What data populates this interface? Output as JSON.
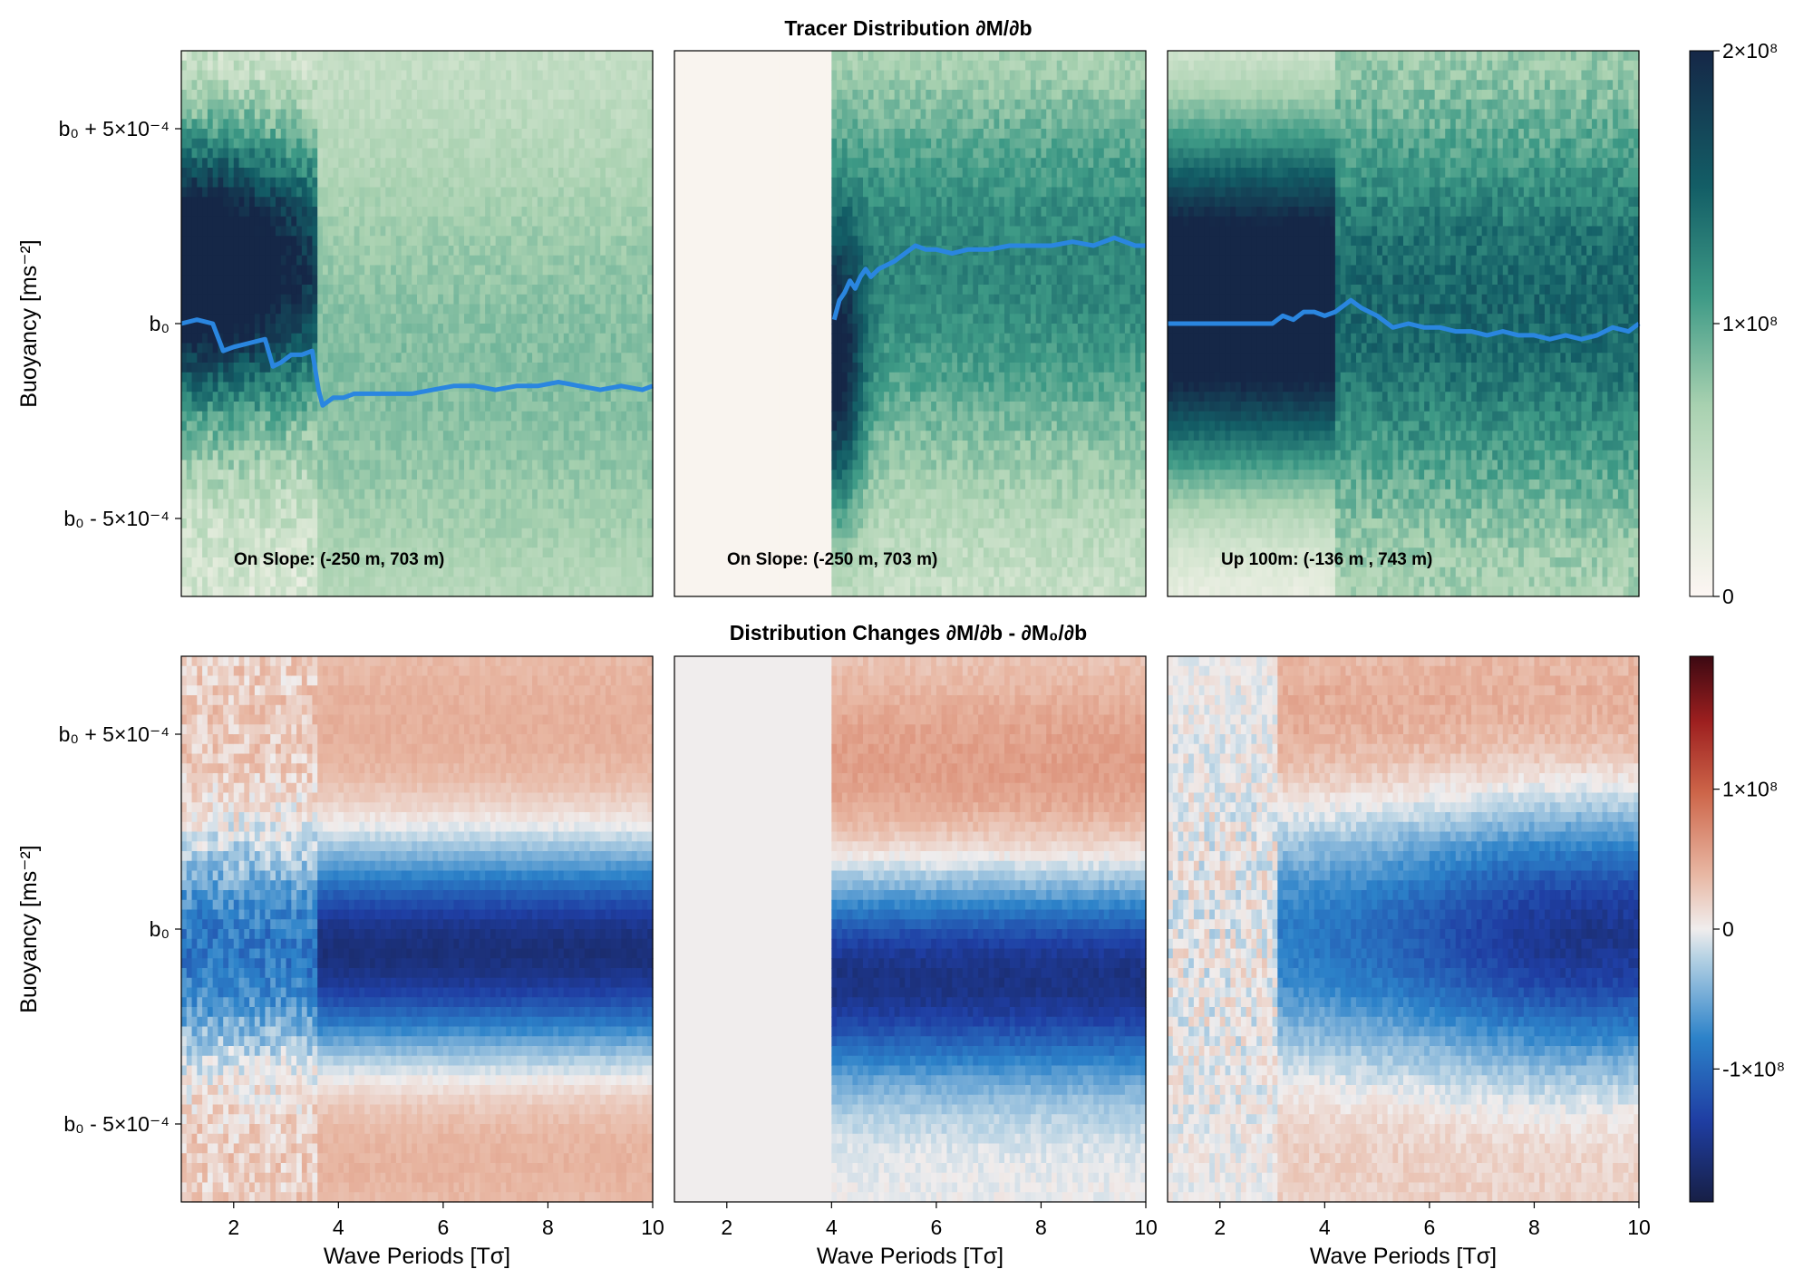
{
  "chart_data": [
    {
      "type": "heatmap",
      "title": "Tracer Distribution ∂M/∂b",
      "xlabel": "",
      "ylabel": "Buoyancy [ms⁻²]",
      "xlim": [
        1,
        10
      ],
      "ylim": [
        -0.0007,
        0.0007
      ],
      "yticks": [
        -0.0005,
        0,
        0.0005
      ],
      "ytick_labels": [
        "b₀ - 5×10⁻⁴",
        "b₀",
        "b₀ + 5×10⁻⁴"
      ],
      "colormap": "tempo",
      "colorbar": {
        "range": [
          0,
          200000000
        ],
        "ticks": [
          0,
          100000000,
          200000000
        ],
        "tick_labels": [
          "0",
          "1×10⁸",
          "2×10⁸"
        ]
      },
      "panels": [
        {
          "annotation": "On Slope: (-250 m, 703 m)",
          "mean_line": {
            "x": [
              1.0,
              1.3,
              1.6,
              1.8,
              2.0,
              2.3,
              2.6,
              2.75,
              2.9,
              3.1,
              3.3,
              3.5,
              3.62,
              3.7,
              3.9,
              4.1,
              4.3,
              4.6,
              5.0,
              5.4,
              5.8,
              6.2,
              6.6,
              7.0,
              7.4,
              7.8,
              8.2,
              8.6,
              9.0,
              9.4,
              9.8,
              10.0
            ],
            "y": [
              0.0,
              1e-05,
              0.0,
              -7e-05,
              -6e-05,
              -5e-05,
              -4e-05,
              -0.00011,
              -0.0001,
              -8e-05,
              -8e-05,
              -7e-05,
              -0.00017,
              -0.00021,
              -0.00019,
              -0.00019,
              -0.00018,
              -0.00018,
              -0.00018,
              -0.00018,
              -0.00017,
              -0.00016,
              -0.00016,
              -0.00017,
              -0.00016,
              -0.00016,
              -0.00015,
              -0.00016,
              -0.00017,
              -0.00016,
              -0.00017,
              -0.00016
            ]
          }
        },
        {
          "annotation": "On Slope: (-250 m, 703 m)",
          "mean_line": {
            "x": [
              4.05,
              4.15,
              4.25,
              4.35,
              4.45,
              4.55,
              4.65,
              4.75,
              4.9,
              5.05,
              5.2,
              5.4,
              5.6,
              5.8,
              6.0,
              6.3,
              6.6,
              7.0,
              7.4,
              7.8,
              8.2,
              8.6,
              9.0,
              9.4,
              9.8,
              10.0
            ],
            "y": [
              1e-05,
              6e-05,
              8e-05,
              0.00011,
              9e-05,
              0.00012,
              0.00014,
              0.00012,
              0.00014,
              0.00015,
              0.00016,
              0.00018,
              0.0002,
              0.00019,
              0.00019,
              0.00018,
              0.00019,
              0.00019,
              0.0002,
              0.0002,
              0.0002,
              0.00021,
              0.0002,
              0.00022,
              0.0002,
              0.0002
            ]
          }
        },
        {
          "annotation": "Up 100m: (-136 m , 743 m)",
          "mean_line": {
            "x": [
              1.0,
              1.5,
              2.0,
              2.5,
              3.0,
              3.2,
              3.4,
              3.6,
              3.8,
              4.0,
              4.2,
              4.5,
              4.7,
              5.0,
              5.3,
              5.6,
              5.9,
              6.2,
              6.5,
              6.8,
              7.1,
              7.4,
              7.7,
              8.0,
              8.3,
              8.6,
              8.9,
              9.2,
              9.5,
              9.8,
              10.0
            ],
            "y": [
              0.0,
              0.0,
              0.0,
              0.0,
              0.0,
              2e-05,
              1e-05,
              3e-05,
              3e-05,
              2e-05,
              3e-05,
              6e-05,
              4e-05,
              2e-05,
              -1e-05,
              0.0,
              -1e-05,
              -1e-05,
              -2e-05,
              -2e-05,
              -3e-05,
              -2e-05,
              -3e-05,
              -3e-05,
              -4e-05,
              -3e-05,
              -4e-05,
              -3e-05,
              -1e-05,
              -2e-05,
              0.0
            ]
          }
        }
      ]
    },
    {
      "type": "heatmap",
      "title": "Distribution Changes ∂M/∂b - ∂M₀/∂b",
      "xlabel": "Wave Periods [Tσ]",
      "ylabel": "Buoyancy [ms⁻²]",
      "xlim": [
        1,
        10
      ],
      "xticks": [
        2,
        4,
        6,
        8,
        10
      ],
      "xtick_labels": [
        "2",
        "4",
        "6",
        "8",
        "10"
      ],
      "ylim": [
        -0.0007,
        0.0007
      ],
      "yticks": [
        -0.0005,
        0,
        0.0005
      ],
      "ytick_labels": [
        "b₀ - 5×10⁻⁴",
        "b₀",
        "b₀ + 5×10⁻⁴"
      ],
      "colormap": "balance",
      "colorbar": {
        "range": [
          -195000000,
          195000000
        ],
        "ticks": [
          -100000000,
          0,
          100000000
        ],
        "tick_labels": [
          "-1×10⁸",
          "0",
          "1×10⁸"
        ]
      },
      "panels": [
        {
          "annotation": ""
        },
        {
          "annotation": ""
        },
        {
          "annotation": ""
        }
      ]
    }
  ]
}
